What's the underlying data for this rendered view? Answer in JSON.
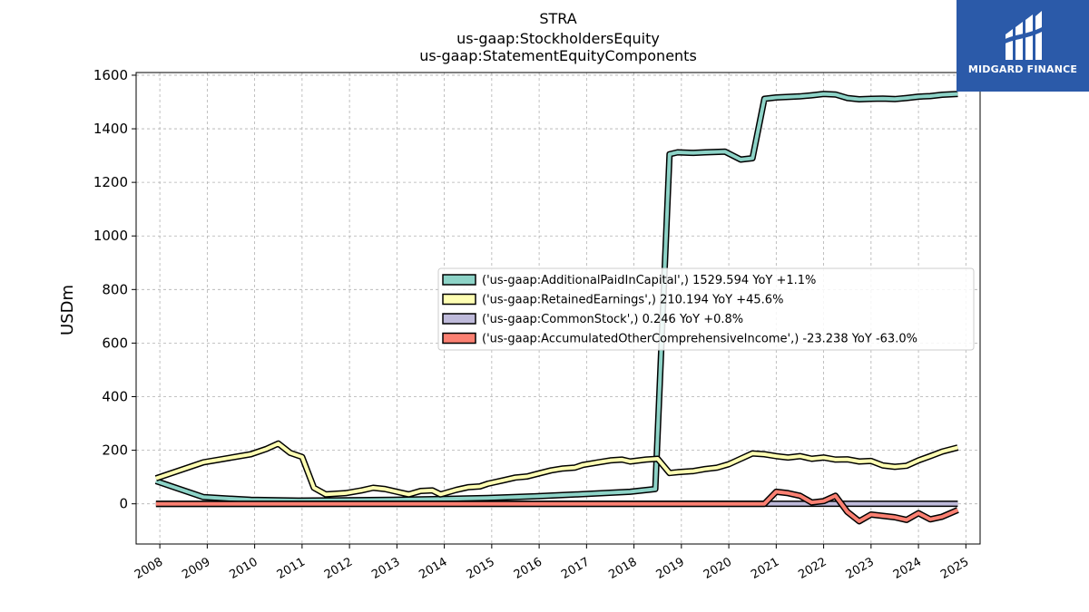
{
  "chart_data": {
    "type": "line",
    "title": "STRA",
    "subtitle_lines": [
      "us-gaap:StockholdersEquity",
      "us-gaap:StatementEquityComponents"
    ],
    "xlabel": "",
    "ylabel": "USDm",
    "xlim": [
      2007.5,
      2025.3
    ],
    "ylim": [
      -150,
      1610
    ],
    "y_ticks": [
      0,
      200,
      400,
      600,
      800,
      1000,
      1200,
      1400,
      1600
    ],
    "x_ticks": [
      "2008",
      "2009",
      "2010",
      "2011",
      "2012",
      "2013",
      "2014",
      "2015",
      "2016",
      "2017",
      "2018",
      "2019",
      "2020",
      "2021",
      "2022",
      "2023",
      "2024",
      "2025"
    ],
    "grid": true,
    "legend_position": "center-right",
    "series": [
      {
        "name": "('us-gaap:AdditionalPaidInCapital',) 1529.594 YoY +1.1%",
        "color": "#8dd3c7",
        "points": [
          [
            2007.92,
            85
          ],
          [
            2008.92,
            25
          ],
          [
            2009.92,
            15
          ],
          [
            2010.92,
            12
          ],
          [
            2011.92,
            13
          ],
          [
            2012.92,
            15
          ],
          [
            2013.92,
            18
          ],
          [
            2014.92,
            22
          ],
          [
            2015.92,
            28
          ],
          [
            2016.92,
            36
          ],
          [
            2017.92,
            45
          ],
          [
            2018.45,
            55
          ],
          [
            2018.75,
            1305
          ],
          [
            2018.92,
            1312
          ],
          [
            2019.25,
            1310
          ],
          [
            2019.5,
            1312
          ],
          [
            2019.92,
            1315
          ],
          [
            2020.25,
            1285
          ],
          [
            2020.5,
            1290
          ],
          [
            2020.75,
            1512
          ],
          [
            2021.0,
            1517
          ],
          [
            2021.25,
            1519
          ],
          [
            2021.5,
            1521
          ],
          [
            2021.75,
            1525
          ],
          [
            2022.0,
            1530
          ],
          [
            2022.25,
            1528
          ],
          [
            2022.5,
            1515
          ],
          [
            2022.75,
            1510
          ],
          [
            2023.0,
            1512
          ],
          [
            2023.25,
            1513
          ],
          [
            2023.5,
            1511
          ],
          [
            2023.75,
            1515
          ],
          [
            2024.0,
            1520
          ],
          [
            2024.25,
            1522
          ],
          [
            2024.5,
            1527
          ],
          [
            2024.83,
            1530
          ]
        ]
      },
      {
        "name": "('us-gaap:RetainedEarnings',) 210.194 YoY +45.6%",
        "color": "#ffffb3",
        "points": [
          [
            2007.92,
            95
          ],
          [
            2008.92,
            155
          ],
          [
            2009.92,
            185
          ],
          [
            2010.25,
            205
          ],
          [
            2010.5,
            225
          ],
          [
            2010.75,
            190
          ],
          [
            2011.0,
            175
          ],
          [
            2011.25,
            60
          ],
          [
            2011.5,
            35
          ],
          [
            2011.92,
            40
          ],
          [
            2012.25,
            50
          ],
          [
            2012.5,
            60
          ],
          [
            2012.75,
            55
          ],
          [
            2013.0,
            45
          ],
          [
            2013.25,
            35
          ],
          [
            2013.5,
            48
          ],
          [
            2013.75,
            50
          ],
          [
            2013.92,
            35
          ],
          [
            2014.25,
            52
          ],
          [
            2014.5,
            62
          ],
          [
            2014.75,
            65
          ],
          [
            2014.92,
            75
          ],
          [
            2015.25,
            88
          ],
          [
            2015.5,
            98
          ],
          [
            2015.75,
            102
          ],
          [
            2015.92,
            110
          ],
          [
            2016.25,
            125
          ],
          [
            2016.5,
            132
          ],
          [
            2016.75,
            135
          ],
          [
            2016.92,
            145
          ],
          [
            2017.25,
            155
          ],
          [
            2017.5,
            162
          ],
          [
            2017.75,
            165
          ],
          [
            2017.92,
            158
          ],
          [
            2018.25,
            165
          ],
          [
            2018.5,
            168
          ],
          [
            2018.75,
            115
          ],
          [
            2018.92,
            118
          ],
          [
            2019.25,
            122
          ],
          [
            2019.5,
            130
          ],
          [
            2019.75,
            135
          ],
          [
            2020.0,
            148
          ],
          [
            2020.25,
            168
          ],
          [
            2020.5,
            188
          ],
          [
            2020.75,
            185
          ],
          [
            2021.0,
            178
          ],
          [
            2021.25,
            173
          ],
          [
            2021.5,
            178
          ],
          [
            2021.75,
            168
          ],
          [
            2022.0,
            173
          ],
          [
            2022.25,
            165
          ],
          [
            2022.5,
            166
          ],
          [
            2022.75,
            158
          ],
          [
            2023.0,
            160
          ],
          [
            2023.25,
            143
          ],
          [
            2023.5,
            138
          ],
          [
            2023.75,
            142
          ],
          [
            2024.0,
            162
          ],
          [
            2024.25,
            178
          ],
          [
            2024.5,
            195
          ],
          [
            2024.83,
            210
          ]
        ]
      },
      {
        "name": "('us-gaap:CommonStock',) 0.246 YoY +0.8%",
        "color": "#bebada",
        "points": [
          [
            2007.92,
            0
          ],
          [
            2024.83,
            0.246
          ]
        ]
      },
      {
        "name": "('us-gaap:AccumulatedOtherComprehensiveIncome',) -23.238 YoY -63.0%",
        "color": "#fb8072",
        "points": [
          [
            2007.92,
            0
          ],
          [
            2020.75,
            0
          ],
          [
            2021.0,
            45
          ],
          [
            2021.25,
            40
          ],
          [
            2021.5,
            30
          ],
          [
            2021.75,
            5
          ],
          [
            2022.0,
            10
          ],
          [
            2022.25,
            30
          ],
          [
            2022.5,
            -30
          ],
          [
            2022.75,
            -65
          ],
          [
            2023.0,
            -40
          ],
          [
            2023.25,
            -45
          ],
          [
            2023.5,
            -50
          ],
          [
            2023.75,
            -60
          ],
          [
            2024.0,
            -35
          ],
          [
            2024.25,
            -58
          ],
          [
            2024.5,
            -48
          ],
          [
            2024.83,
            -23.238
          ]
        ]
      }
    ]
  },
  "logo": {
    "text": "MIDGARD FINANCE",
    "icon": "midgard-logo-mark",
    "background": "#2b5aa9"
  }
}
